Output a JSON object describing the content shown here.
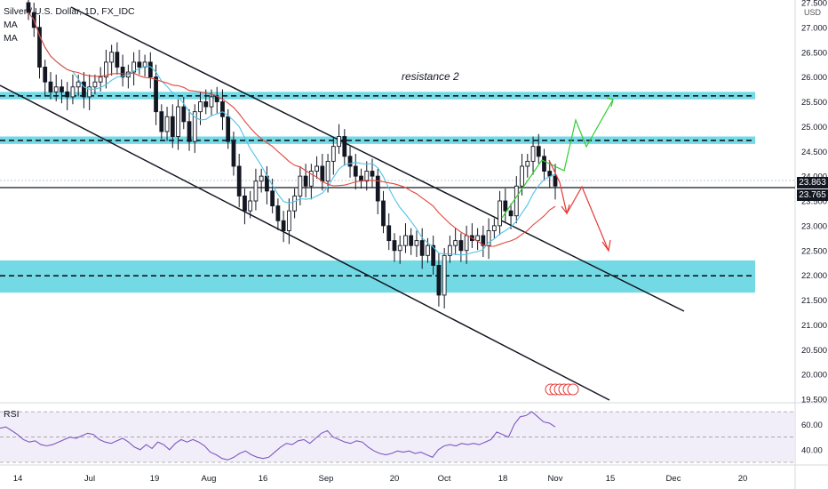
{
  "legend": {
    "symbol": "Silver / U.S. Dollar, 1D, FX_IDC",
    "ma1": "MA",
    "ma2": "MA"
  },
  "currency": "USD",
  "rsi_label": "RSI",
  "colors": {
    "resistance_zone": "#5ad3e0",
    "candle": "#131722",
    "ma_fast": "#4fc3e8",
    "ma_slow": "#e0473c",
    "rsi_line": "#7e57c2",
    "rsi_band": "#ede7f6",
    "arrow_up": "#33cc33",
    "arrow_down": "#e53935"
  },
  "annotation": "resistance 2",
  "price_tags": {
    "upper": "23.863",
    "lower": "23.765"
  },
  "chart_data": {
    "type": "candlestick",
    "title": "Silver / U.S. Dollar, 1D, FX_IDC",
    "xlabel": "",
    "ylabel": "",
    "ylim": [
      19.5,
      27.5
    ],
    "y_ticks": [
      "27.500",
      "27.000",
      "26.500",
      "26.000",
      "25.500",
      "25.000",
      "24.500",
      "24.000",
      "23.500",
      "23.000",
      "22.500",
      "22.000",
      "21.500",
      "21.000",
      "20.500",
      "20.000",
      "19.500"
    ],
    "x_ticks": [
      "14",
      "Jul",
      "19",
      "Aug",
      "16",
      "Sep",
      "20",
      "Oct",
      "18",
      "Nov",
      "15",
      "Dec",
      "20"
    ],
    "closes": [
      27.3,
      27.0,
      26.2,
      25.9,
      25.7,
      25.8,
      25.7,
      25.6,
      25.8,
      25.9,
      25.6,
      25.8,
      25.9,
      26.0,
      26.3,
      26.5,
      26.2,
      26.0,
      26.1,
      26.3,
      26.2,
      26.3,
      26.0,
      25.3,
      24.9,
      25.2,
      24.8,
      25.4,
      25.1,
      24.7,
      25.3,
      25.5,
      25.4,
      25.6,
      25.5,
      25.2,
      24.7,
      24.2,
      23.6,
      23.3,
      23.5,
      23.9,
      24.0,
      23.7,
      23.4,
      23.1,
      22.9,
      23.3,
      23.6,
      24.0,
      23.8,
      24.1,
      24.2,
      23.9,
      24.3,
      24.6,
      24.8,
      24.4,
      24.2,
      24.0,
      23.9,
      24.1,
      24.0,
      23.5,
      23.0,
      22.7,
      22.5,
      22.6,
      22.8,
      22.6,
      22.7,
      22.4,
      22.6,
      22.2,
      21.6,
      22.4,
      22.6,
      22.7,
      22.5,
      22.8,
      22.7,
      22.8,
      22.6,
      22.9,
      23.0,
      23.5,
      23.3,
      23.2,
      23.8,
      24.2,
      24.3,
      24.6,
      24.4,
      24.1,
      24.0,
      23.8
    ],
    "resistance_zones": [
      {
        "name": "resistance 2",
        "low": 25.55,
        "high": 25.7,
        "level": 25.62
      },
      {
        "low": 24.65,
        "high": 24.8,
        "level": 24.72
      },
      {
        "low": 21.65,
        "high": 22.3,
        "level": 21.99
      }
    ],
    "horizontal_line": 23.765,
    "rsi": {
      "ticks": [
        "60.00",
        "40.00"
      ],
      "ylim": [
        30,
        75
      ],
      "band": [
        30,
        70
      ],
      "values": [
        57,
        58,
        55,
        52,
        48,
        46,
        47,
        44,
        43,
        44,
        46,
        48,
        50,
        49,
        51,
        53,
        52,
        48,
        46,
        45,
        47,
        49,
        46,
        42,
        40,
        44,
        41,
        46,
        44,
        40,
        45,
        48,
        46,
        48,
        46,
        43,
        38,
        36,
        33,
        32,
        34,
        37,
        39,
        36,
        34,
        33,
        34,
        38,
        42,
        45,
        44,
        47,
        48,
        45,
        49,
        53,
        55,
        50,
        48,
        46,
        45,
        47,
        46,
        42,
        39,
        37,
        36,
        37,
        39,
        38,
        39,
        37,
        38,
        36,
        34,
        40,
        43,
        44,
        43,
        45,
        44,
        45,
        44,
        46,
        48,
        54,
        52,
        50,
        60,
        66,
        67,
        70,
        66,
        62,
        61,
        58
      ]
    }
  }
}
